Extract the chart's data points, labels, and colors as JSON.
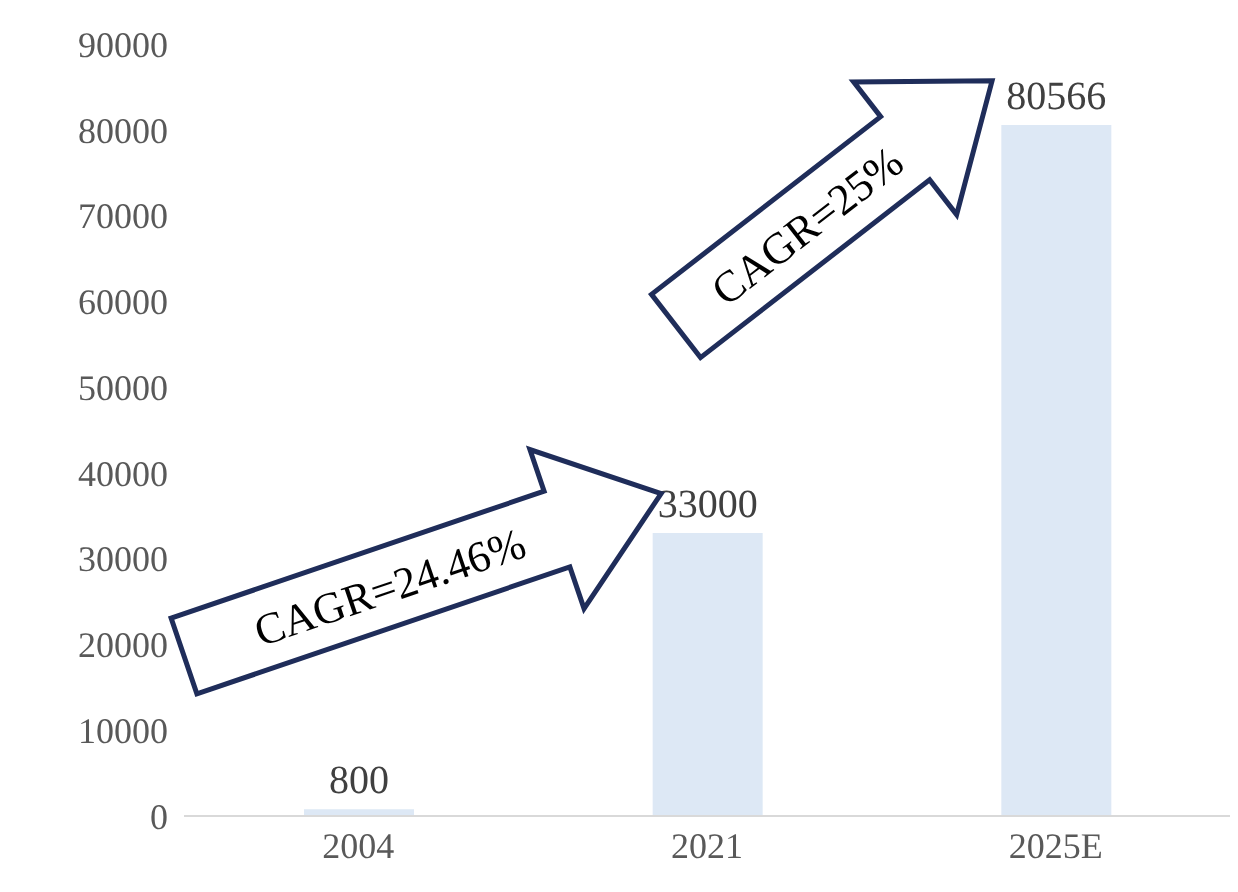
{
  "chart_data": {
    "type": "bar",
    "categories": [
      "2004",
      "2021",
      "2025E"
    ],
    "values": [
      800,
      33000,
      80566
    ],
    "color": "#dde8f5",
    "ylim": [
      0,
      90000
    ],
    "yticks": [
      0,
      10000,
      20000,
      30000,
      40000,
      50000,
      60000,
      70000,
      80000,
      90000
    ],
    "grid": false,
    "data_labels": true,
    "annotations": [
      "CAGR=24.46%",
      "CAGR=25%"
    ]
  }
}
